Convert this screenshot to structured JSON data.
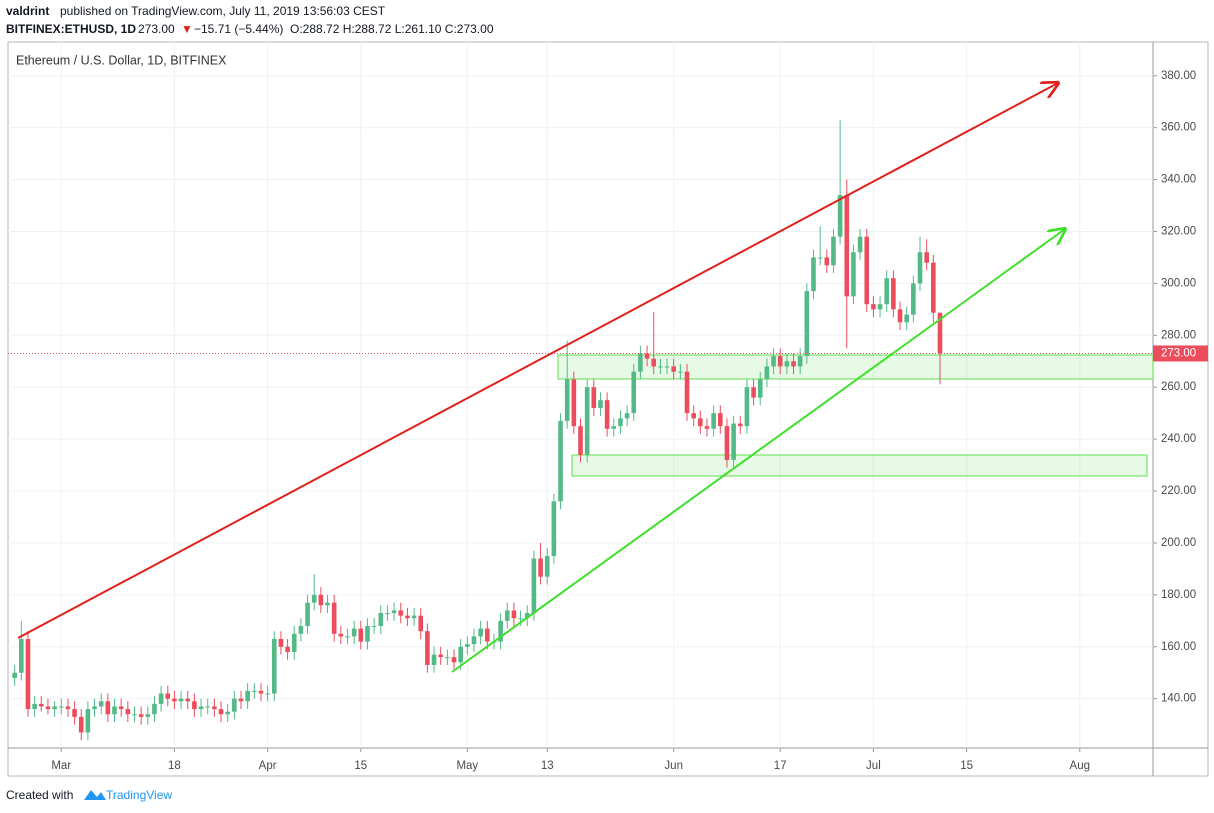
{
  "header": {
    "author": "valdrint",
    "published": "published on TradingView.com, July 11, 2019 13:56:03 CEST",
    "symbol": "BITFINEX:ETHUSD, 1D",
    "last": "273.00",
    "arrow": "▼",
    "change": "−15.71 (−5.44%)",
    "ohlc": "O:288.72 H:288.72 L:261.10 C:273.00"
  },
  "footer": {
    "created": "Created with",
    "brand": "TradingView"
  },
  "chart_data": {
    "type": "candlestick",
    "title": "Ethereum / U.S. Dollar, 1D, BITFINEX",
    "up_color": "#53b987",
    "down_color": "#eb4d5c",
    "grid": true,
    "xlim": [
      "2019-02-21",
      "2019-08-12"
    ],
    "xticks": [
      {
        "value": "2019-03-01",
        "label": "Mar"
      },
      {
        "value": "2019-03-18",
        "label": "18"
      },
      {
        "value": "2019-04-01",
        "label": "Apr"
      },
      {
        "value": "2019-04-15",
        "label": "15"
      },
      {
        "value": "2019-05-01",
        "label": "May"
      },
      {
        "value": "2019-05-13",
        "label": "13"
      },
      {
        "value": "2019-06-01",
        "label": "Jun"
      },
      {
        "value": "2019-06-17",
        "label": "17"
      },
      {
        "value": "2019-07-01",
        "label": "Jul"
      },
      {
        "value": "2019-07-15",
        "label": "15"
      },
      {
        "value": "2019-08-01",
        "label": "Aug"
      }
    ],
    "ylim": [
      121,
      393
    ],
    "yticks": [
      {
        "value": 140,
        "label": "140.00"
      },
      {
        "value": 160,
        "label": "160.00"
      },
      {
        "value": 180,
        "label": "180.00"
      },
      {
        "value": 200,
        "label": "200.00"
      },
      {
        "value": 220,
        "label": "220.00"
      },
      {
        "value": 240,
        "label": "240.00"
      },
      {
        "value": 260,
        "label": "260.00"
      },
      {
        "value": 280,
        "label": "280.00"
      },
      {
        "value": 300,
        "label": "300.00"
      },
      {
        "value": 320,
        "label": "320.00"
      },
      {
        "value": 340,
        "label": "340.00"
      },
      {
        "value": 360,
        "label": "360.00"
      },
      {
        "value": 380,
        "label": "380.00"
      }
    ],
    "last_price": {
      "value": 273,
      "label": "273.00",
      "color": "#eb4d5c"
    },
    "x": [
      "2019-02-22",
      "2019-02-23",
      "2019-02-24",
      "2019-02-25",
      "2019-02-26",
      "2019-02-27",
      "2019-02-28",
      "2019-03-01",
      "2019-03-02",
      "2019-03-03",
      "2019-03-04",
      "2019-03-05",
      "2019-03-06",
      "2019-03-07",
      "2019-03-08",
      "2019-03-09",
      "2019-03-10",
      "2019-03-11",
      "2019-03-12",
      "2019-03-13",
      "2019-03-14",
      "2019-03-15",
      "2019-03-16",
      "2019-03-17",
      "2019-03-18",
      "2019-03-19",
      "2019-03-20",
      "2019-03-21",
      "2019-03-22",
      "2019-03-23",
      "2019-03-24",
      "2019-03-25",
      "2019-03-26",
      "2019-03-27",
      "2019-03-28",
      "2019-03-29",
      "2019-03-30",
      "2019-03-31",
      "2019-04-01",
      "2019-04-02",
      "2019-04-03",
      "2019-04-04",
      "2019-04-05",
      "2019-04-06",
      "2019-04-07",
      "2019-04-08",
      "2019-04-09",
      "2019-04-10",
      "2019-04-11",
      "2019-04-12",
      "2019-04-13",
      "2019-04-14",
      "2019-04-15",
      "2019-04-16",
      "2019-04-17",
      "2019-04-18",
      "2019-04-19",
      "2019-04-20",
      "2019-04-21",
      "2019-04-22",
      "2019-04-23",
      "2019-04-24",
      "2019-04-25",
      "2019-04-26",
      "2019-04-27",
      "2019-04-28",
      "2019-04-29",
      "2019-04-30",
      "2019-05-01",
      "2019-05-02",
      "2019-05-03",
      "2019-05-04",
      "2019-05-05",
      "2019-05-06",
      "2019-05-07",
      "2019-05-08",
      "2019-05-09",
      "2019-05-10",
      "2019-05-11",
      "2019-05-12",
      "2019-05-13",
      "2019-05-14",
      "2019-05-15",
      "2019-05-16",
      "2019-05-17",
      "2019-05-18",
      "2019-05-19",
      "2019-05-20",
      "2019-05-21",
      "2019-05-22",
      "2019-05-23",
      "2019-05-24",
      "2019-05-25",
      "2019-05-26",
      "2019-05-27",
      "2019-05-28",
      "2019-05-29",
      "2019-05-30",
      "2019-05-31",
      "2019-06-01",
      "2019-06-02",
      "2019-06-03",
      "2019-06-04",
      "2019-06-05",
      "2019-06-06",
      "2019-06-07",
      "2019-06-08",
      "2019-06-09",
      "2019-06-10",
      "2019-06-11",
      "2019-06-12",
      "2019-06-13",
      "2019-06-14",
      "2019-06-15",
      "2019-06-16",
      "2019-06-17",
      "2019-06-18",
      "2019-06-19",
      "2019-06-20",
      "2019-06-21",
      "2019-06-22",
      "2019-06-23",
      "2019-06-24",
      "2019-06-25",
      "2019-06-26",
      "2019-06-27",
      "2019-06-28",
      "2019-06-29",
      "2019-06-30",
      "2019-07-01",
      "2019-07-02",
      "2019-07-03",
      "2019-07-04",
      "2019-07-05",
      "2019-07-06",
      "2019-07-07",
      "2019-07-08",
      "2019-07-09",
      "2019-07-10",
      "2019-07-11"
    ],
    "open": [
      148,
      150,
      163,
      136,
      138,
      137,
      136,
      137,
      137,
      136,
      133,
      127,
      136,
      137,
      139,
      134,
      137,
      136,
      134,
      134,
      133,
      134,
      138,
      142,
      140,
      139,
      140,
      139,
      136,
      137,
      137,
      136,
      134,
      135,
      140,
      139,
      143,
      143,
      142,
      142,
      163,
      160,
      158,
      165,
      168,
      177,
      180,
      176,
      177,
      165,
      164,
      164,
      167,
      162,
      168,
      168,
      173,
      173,
      174,
      172,
      171,
      172,
      166,
      153,
      157,
      156,
      156,
      154,
      160,
      161,
      164,
      167,
      162,
      162,
      170,
      174,
      171,
      171,
      173,
      194,
      187,
      195,
      216,
      247,
      263,
      245,
      234,
      260,
      252,
      255,
      244,
      245,
      248,
      250,
      266,
      273,
      271,
      268,
      268,
      268,
      266,
      266,
      250,
      248,
      245,
      244,
      250,
      245,
      232,
      246,
      245,
      260,
      256,
      263,
      268,
      272,
      268,
      270,
      268,
      272,
      297,
      310,
      310,
      307,
      318,
      334,
      295,
      312,
      318,
      292,
      290,
      292,
      302,
      290,
      285,
      288,
      300,
      312,
      308,
      288.72
    ],
    "high": [
      153,
      170,
      166,
      141,
      141,
      140,
      139,
      140,
      140,
      139,
      136,
      139,
      140,
      142,
      142,
      140,
      140,
      139,
      137,
      137,
      137,
      141,
      145,
      145,
      143,
      143,
      143,
      142,
      140,
      140,
      140,
      139,
      138,
      143,
      143,
      146,
      146,
      146,
      145,
      166,
      166,
      163,
      168,
      171,
      180,
      188,
      183,
      180,
      180,
      168,
      167,
      170,
      170,
      171,
      171,
      176,
      176,
      177,
      177,
      175,
      175,
      175,
      169,
      160,
      160,
      159,
      159,
      163,
      164,
      167,
      170,
      170,
      165,
      173,
      177,
      177,
      174,
      176,
      197,
      200,
      198,
      219,
      250,
      278,
      266,
      248,
      263,
      263,
      258,
      258,
      248,
      251,
      253,
      269,
      276,
      276,
      289,
      271,
      271,
      271,
      269,
      269,
      253,
      251,
      248,
      253,
      253,
      248,
      249,
      249,
      263,
      263,
      266,
      271,
      275,
      275,
      273,
      273,
      275,
      300,
      313,
      322,
      313,
      321,
      363,
      340,
      315,
      321,
      321,
      295,
      295,
      305,
      305,
      293,
      291,
      303,
      318,
      317,
      311,
      288.72
    ],
    "low": [
      145,
      147,
      133,
      133,
      135,
      134,
      133,
      134,
      133,
      130,
      124,
      124,
      133,
      134,
      131,
      131,
      133,
      131,
      131,
      130,
      130,
      131,
      135,
      137,
      136,
      136,
      136,
      133,
      133,
      134,
      133,
      131,
      131,
      132,
      136,
      136,
      140,
      139,
      139,
      139,
      157,
      155,
      155,
      162,
      165,
      174,
      173,
      173,
      162,
      161,
      161,
      161,
      159,
      159,
      165,
      165,
      170,
      170,
      169,
      168,
      168,
      163,
      150,
      150,
      153,
      153,
      151,
      151,
      157,
      158,
      161,
      159,
      159,
      159,
      167,
      168,
      168,
      168,
      170,
      184,
      184,
      192,
      213,
      244,
      242,
      231,
      231,
      249,
      249,
      241,
      241,
      242,
      245,
      247,
      263,
      268,
      265,
      265,
      265,
      263,
      263,
      247,
      245,
      242,
      241,
      241,
      242,
      229,
      229,
      242,
      242,
      253,
      253,
      260,
      265,
      265,
      265,
      265,
      265,
      269,
      294,
      307,
      304,
      304,
      315,
      275,
      292,
      309,
      289,
      287,
      287,
      289,
      287,
      282,
      282,
      285,
      297,
      305,
      285,
      261.1
    ],
    "close": [
      150,
      163,
      136,
      138,
      137,
      136,
      137,
      137,
      136,
      133,
      127,
      136,
      137,
      139,
      134,
      137,
      136,
      134,
      134,
      133,
      134,
      138,
      142,
      140,
      139,
      140,
      139,
      136,
      137,
      137,
      136,
      134,
      135,
      140,
      139,
      143,
      143,
      142,
      142,
      163,
      160,
      158,
      165,
      168,
      177,
      180,
      176,
      177,
      165,
      164,
      164,
      167,
      162,
      168,
      168,
      173,
      173,
      174,
      172,
      171,
      172,
      166,
      153,
      157,
      156,
      156,
      154,
      160,
      161,
      164,
      167,
      162,
      162,
      170,
      174,
      171,
      171,
      173,
      194,
      187,
      195,
      216,
      247,
      263,
      245,
      234,
      260,
      252,
      255,
      244,
      245,
      248,
      250,
      266,
      273,
      271,
      268,
      268,
      268,
      266,
      266,
      250,
      248,
      245,
      244,
      250,
      245,
      232,
      246,
      245,
      260,
      256,
      263,
      268,
      272,
      268,
      270,
      268,
      272,
      297,
      310,
      310,
      307,
      318,
      334,
      295,
      312,
      318,
      292,
      290,
      292,
      302,
      290,
      285,
      288,
      300,
      312,
      308,
      288.72,
      273
    ]
  }
}
